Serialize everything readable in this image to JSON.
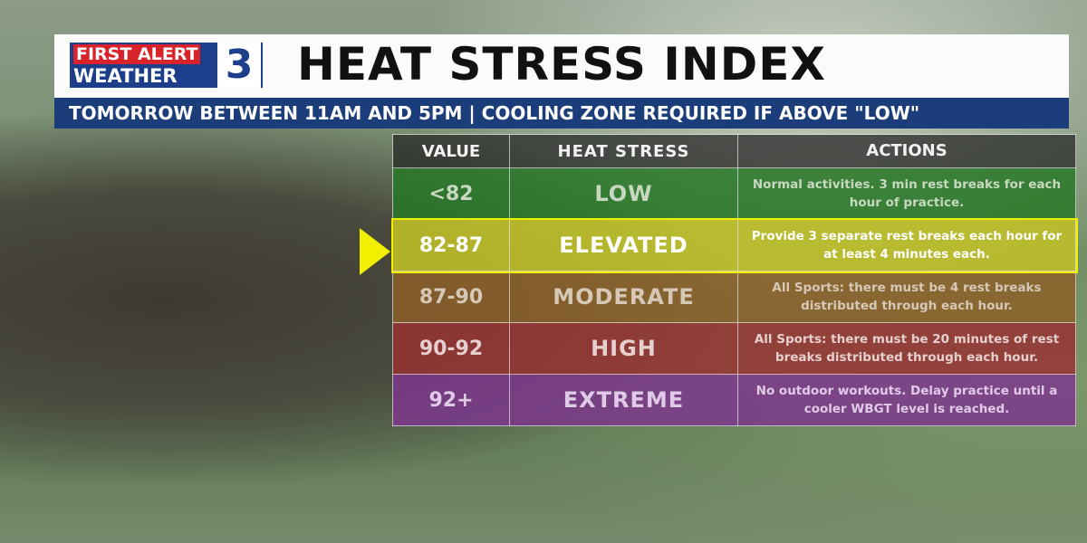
{
  "header": {
    "logo": {
      "line1": "FIRST ALERT",
      "line2": "WEATHER",
      "number": "3"
    },
    "title": "HEAT STRESS INDEX",
    "subtitle": "TOMORROW BETWEEN 11AM AND 5PM | COOLING ZONE REQUIRED IF ABOVE \"LOW\""
  },
  "table": {
    "columns": [
      "VALUE",
      "HEAT STRESS",
      "ACTIONS"
    ],
    "rows": [
      [
        "<82",
        "LOW",
        "Normal activities. 3 min rest breaks for each hour of practice."
      ],
      [
        "82-87",
        "ELEVATED",
        "Provide 3 separate rest breaks each hour for at least 4 minutes each."
      ],
      [
        "87-90",
        "MODERATE",
        "All Sports: there must be 4 rest breaks distributed through each hour."
      ],
      [
        "90-92",
        "HIGH",
        "All Sports: there must be 20 minutes of rest breaks distributed through each hour."
      ],
      [
        "92+",
        "EXTREME",
        "No outdoor workouts. Delay practice until a cooler WBGT level is reached."
      ]
    ]
  }
}
